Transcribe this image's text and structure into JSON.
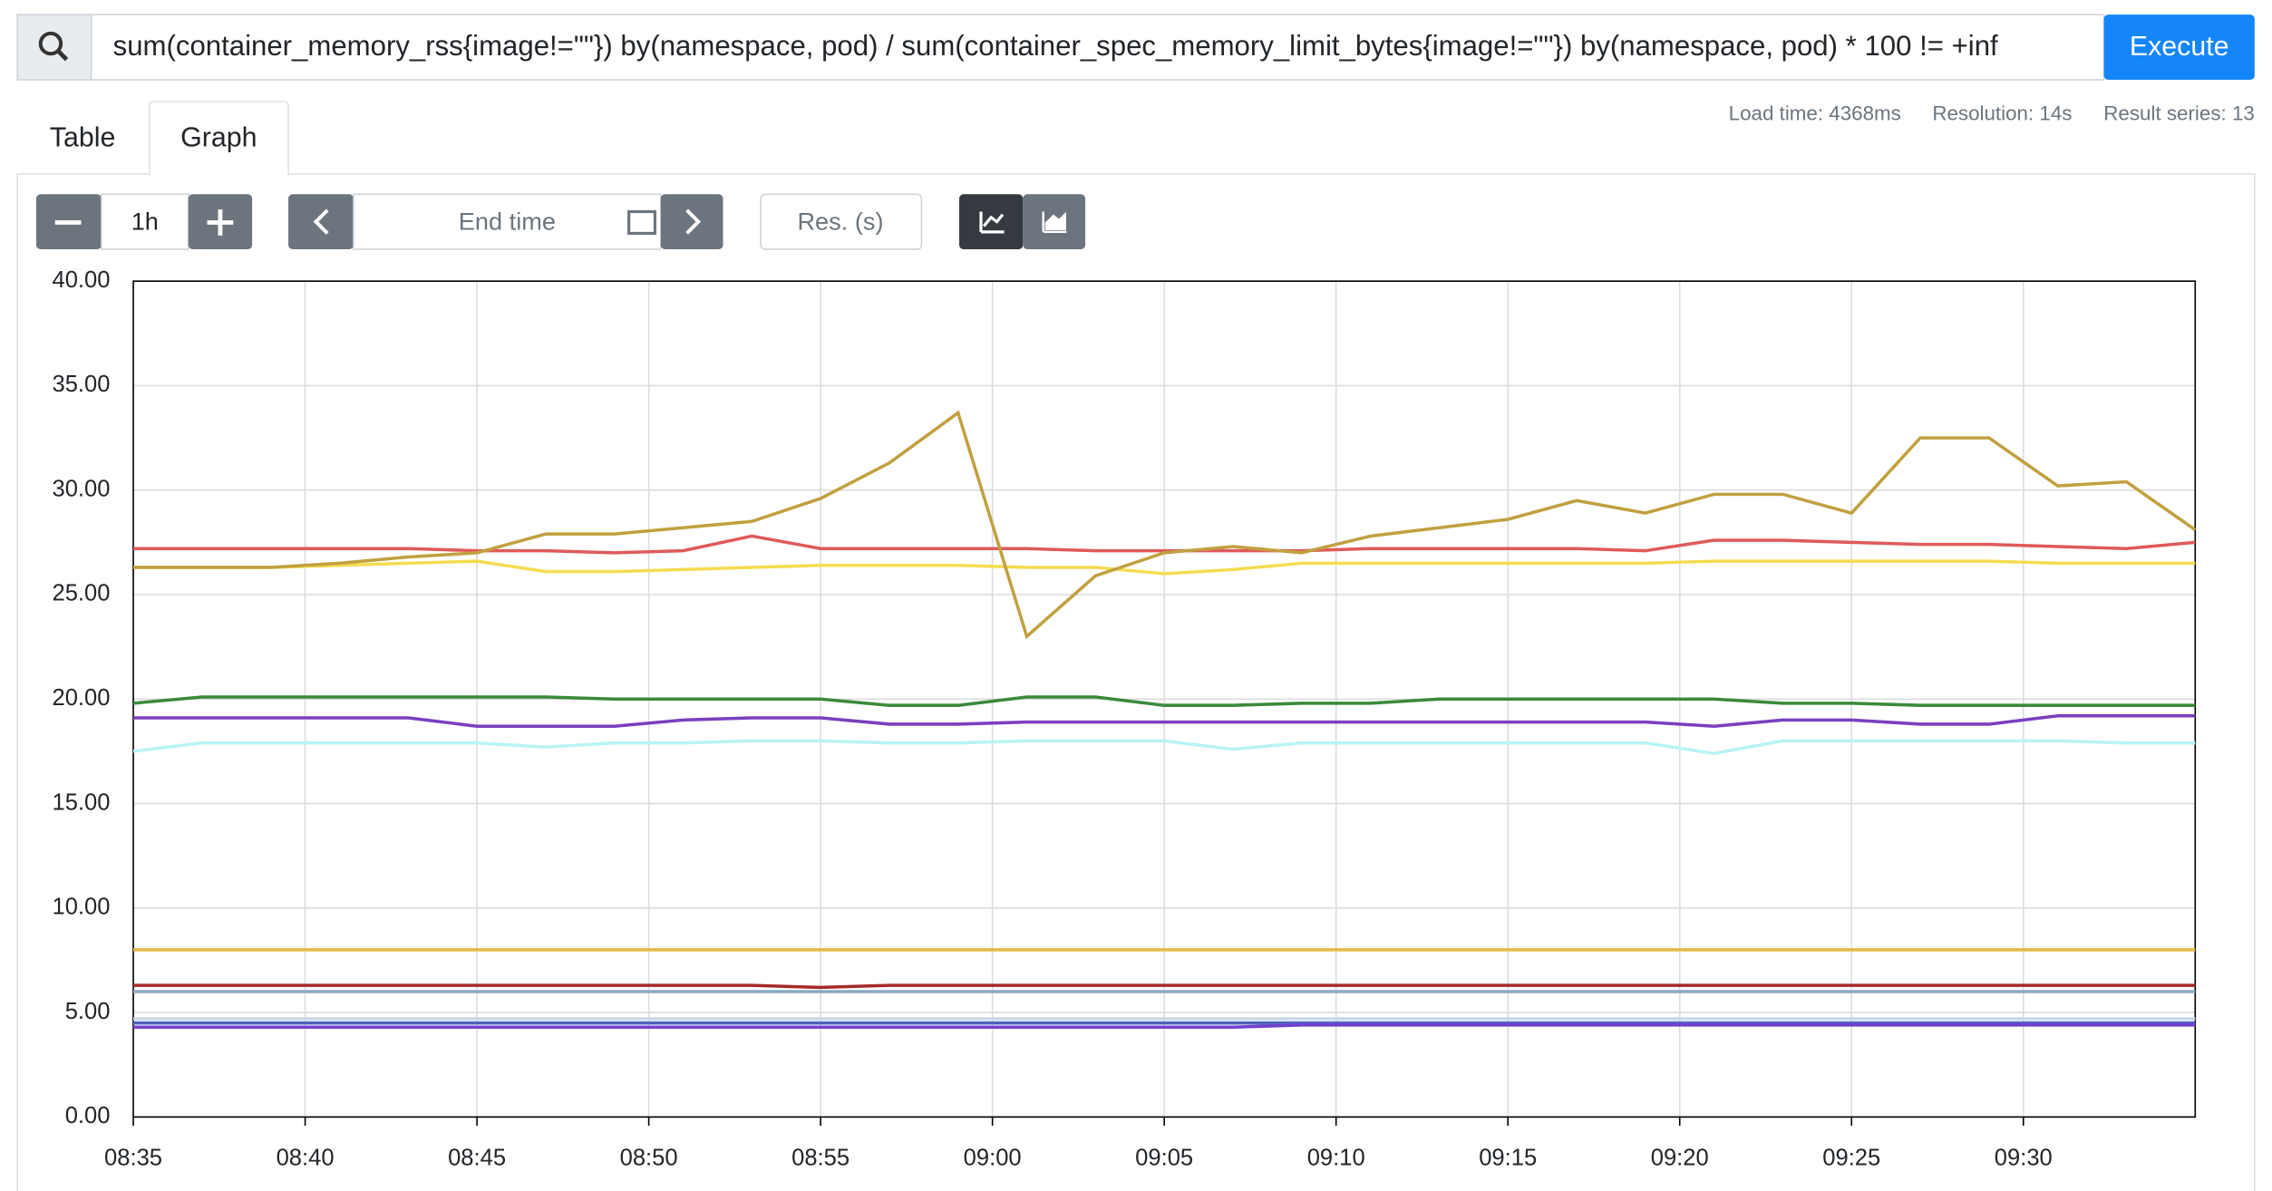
{
  "query": "sum(container_memory_rss{image!=\"\"}) by(namespace, pod) / sum(container_spec_memory_limit_bytes{image!=\"\"}) by(namespace, pod) * 100 != +inf",
  "execute": "Execute",
  "stats": [
    "Load time: 4368ms",
    "Resolution: 14s",
    "Result series: 13"
  ],
  "tabs": [
    "Table",
    "Graph"
  ],
  "controls": {
    "range": "1h",
    "end_time": "End time",
    "resolution": "Res. (s)"
  },
  "chart_data": {
    "type": "line",
    "x": [
      "08:35",
      "08:37",
      "08:39",
      "08:41",
      "08:43",
      "08:45",
      "08:47",
      "08:49",
      "08:51",
      "08:53",
      "08:55",
      "08:57",
      "08:59",
      "09:01",
      "09:03",
      "09:05",
      "09:07",
      "09:09",
      "09:11",
      "09:13",
      "09:15",
      "09:17",
      "09:19",
      "09:21",
      "09:23",
      "09:25",
      "09:27",
      "09:29",
      "09:31",
      "09:33",
      "09:35"
    ],
    "xlim": [
      "08:35",
      "09:35"
    ],
    "xticks": [
      "08:35",
      "08:40",
      "08:45",
      "08:50",
      "08:55",
      "09:00",
      "09:05",
      "09:10",
      "09:15",
      "09:20",
      "09:25",
      "09:30"
    ],
    "ylim": [
      0,
      40
    ],
    "yticks": [
      {
        "value": 0,
        "label": "0.00"
      },
      {
        "value": 5,
        "label": "5.00"
      },
      {
        "value": 10,
        "label": "10.00"
      },
      {
        "value": 15,
        "label": "15.00"
      },
      {
        "value": 20,
        "label": "20.00"
      },
      {
        "value": 25,
        "label": "25.00"
      },
      {
        "value": 30,
        "label": "30.00"
      },
      {
        "value": 35,
        "label": "35.00"
      },
      {
        "value": 40,
        "label": "40.00"
      }
    ],
    "grid": true,
    "series": [
      {
        "color": "#e8b840",
        "values": [
          8,
          8,
          8,
          8,
          8,
          8,
          8,
          8,
          8,
          8,
          8,
          8,
          8,
          8,
          8,
          8,
          8,
          8,
          8,
          8,
          8,
          8,
          8,
          8,
          8,
          8,
          8,
          8,
          8,
          8,
          8
        ]
      },
      {
        "color": "#a8282a",
        "values": [
          6.3,
          6.3,
          6.3,
          6.3,
          6.3,
          6.3,
          6.3,
          6.3,
          6.3,
          6.3,
          6.2,
          6.3,
          6.3,
          6.3,
          6.3,
          6.3,
          6.3,
          6.3,
          6.3,
          6.3,
          6.3,
          6.3,
          6.3,
          6.3,
          6.3,
          6.3,
          6.3,
          6.3,
          6.3,
          6.3,
          6.3
        ]
      },
      {
        "color": "#8aa8c0",
        "values": [
          6,
          6,
          6,
          6,
          6,
          6,
          6,
          6,
          6,
          6,
          6,
          6,
          6,
          6,
          6,
          6,
          6,
          6,
          6,
          6,
          6,
          6,
          6,
          6,
          6,
          6,
          6,
          6,
          6,
          6,
          6
        ]
      },
      {
        "color": "#c8d8e8",
        "values": [
          4.7,
          4.7,
          4.7,
          4.7,
          4.7,
          4.7,
          4.7,
          4.7,
          4.7,
          4.7,
          4.7,
          4.7,
          4.7,
          4.7,
          4.7,
          4.7,
          4.7,
          4.7,
          4.7,
          4.7,
          4.7,
          4.7,
          4.7,
          4.7,
          4.7,
          4.7,
          4.7,
          4.7,
          4.7,
          4.7,
          4.7
        ]
      },
      {
        "color": "#a0a0e0",
        "values": [
          4.5,
          4.5,
          4.5,
          4.5,
          4.5,
          4.5,
          4.5,
          4.5,
          4.5,
          4.5,
          4.5,
          4.5,
          4.5,
          4.5,
          4.5,
          4.5,
          4.5,
          4.5,
          4.5,
          4.5,
          4.5,
          4.5,
          4.5,
          4.5,
          4.5,
          4.5,
          4.5,
          4.5,
          4.5,
          4.5,
          4.5
        ]
      },
      {
        "color": "#5060c0",
        "values": [
          4.5,
          4.5,
          4.5,
          4.5,
          4.5,
          4.5,
          4.5,
          4.5,
          4.5,
          4.5,
          4.5,
          4.5,
          4.5,
          4.5,
          4.5,
          4.5,
          4.5,
          4.5,
          4.5,
          4.5,
          4.5,
          4.5,
          4.5,
          4.5,
          4.5,
          4.5,
          4.5,
          4.5,
          4.5,
          4.5,
          4.5
        ]
      },
      {
        "color": "#7040d0",
        "values": [
          4.3,
          4.3,
          4.3,
          4.3,
          4.3,
          4.3,
          4.3,
          4.3,
          4.3,
          4.3,
          4.3,
          4.3,
          4.3,
          4.3,
          4.3,
          4.3,
          4.3,
          4.4,
          4.4,
          4.4,
          4.4,
          4.4,
          4.4,
          4.4,
          4.4,
          4.4,
          4.4,
          4.4,
          4.4,
          4.4,
          4.4
        ]
      },
      {
        "color": "#b8f4f4",
        "values": [
          17.5,
          17.9,
          17.9,
          17.9,
          17.9,
          17.9,
          17.7,
          17.9,
          17.9,
          18,
          18,
          17.9,
          17.9,
          18,
          18,
          18,
          17.6,
          17.9,
          17.9,
          17.9,
          17.9,
          17.9,
          17.9,
          17.4,
          18,
          18,
          18,
          18,
          18,
          17.9,
          17.9
        ]
      },
      {
        "color": "#7b3fbf",
        "values": [
          19.1,
          19.1,
          19.1,
          19.1,
          19.1,
          18.7,
          18.7,
          18.7,
          19,
          19.1,
          19.1,
          18.8,
          18.8,
          18.9,
          18.9,
          18.9,
          18.9,
          18.9,
          18.9,
          18.9,
          18.9,
          18.9,
          18.9,
          18.7,
          19,
          19,
          18.8,
          18.8,
          19.2,
          19.2,
          19.2
        ]
      },
      {
        "color": "#3a8a3a",
        "values": [
          19.8,
          20.1,
          20.1,
          20.1,
          20.1,
          20.1,
          20.1,
          20,
          20,
          20,
          20,
          19.7,
          19.7,
          20.1,
          20.1,
          19.7,
          19.7,
          19.8,
          19.8,
          20,
          20,
          20,
          20,
          20,
          19.8,
          19.8,
          19.7,
          19.7,
          19.7,
          19.7,
          19.7
        ]
      },
      {
        "color": "#f5dc50",
        "values": [
          26.3,
          26.3,
          26.3,
          26.4,
          26.5,
          26.6,
          26.1,
          26.1,
          26.2,
          26.3,
          26.4,
          26.4,
          26.4,
          26.3,
          26.3,
          26.0,
          26.2,
          26.5,
          26.5,
          26.5,
          26.5,
          26.5,
          26.5,
          26.6,
          26.6,
          26.6,
          26.6,
          26.6,
          26.5,
          26.5,
          26.5
        ]
      },
      {
        "color": "#e05a5a",
        "values": [
          27.2,
          27.2,
          27.2,
          27.2,
          27.2,
          27.1,
          27.1,
          27,
          27.1,
          27.8,
          27.2,
          27.2,
          27.2,
          27.2,
          27.1,
          27.1,
          27.1,
          27.1,
          27.2,
          27.2,
          27.2,
          27.2,
          27.1,
          27.6,
          27.6,
          27.5,
          27.4,
          27.4,
          27.3,
          27.2,
          27.5
        ]
      },
      {
        "color": "#c1a03f",
        "values": [
          26.3,
          26.3,
          26.3,
          26.5,
          26.8,
          27,
          27.9,
          27.9,
          28.2,
          28.5,
          29.6,
          31.3,
          33.7,
          23,
          25.9,
          27,
          27.3,
          27,
          27.8,
          28.2,
          28.6,
          29.5,
          28.9,
          29.8,
          29.8,
          28.9,
          32.5,
          32.5,
          30.2,
          30.4,
          28.1
        ]
      }
    ]
  }
}
